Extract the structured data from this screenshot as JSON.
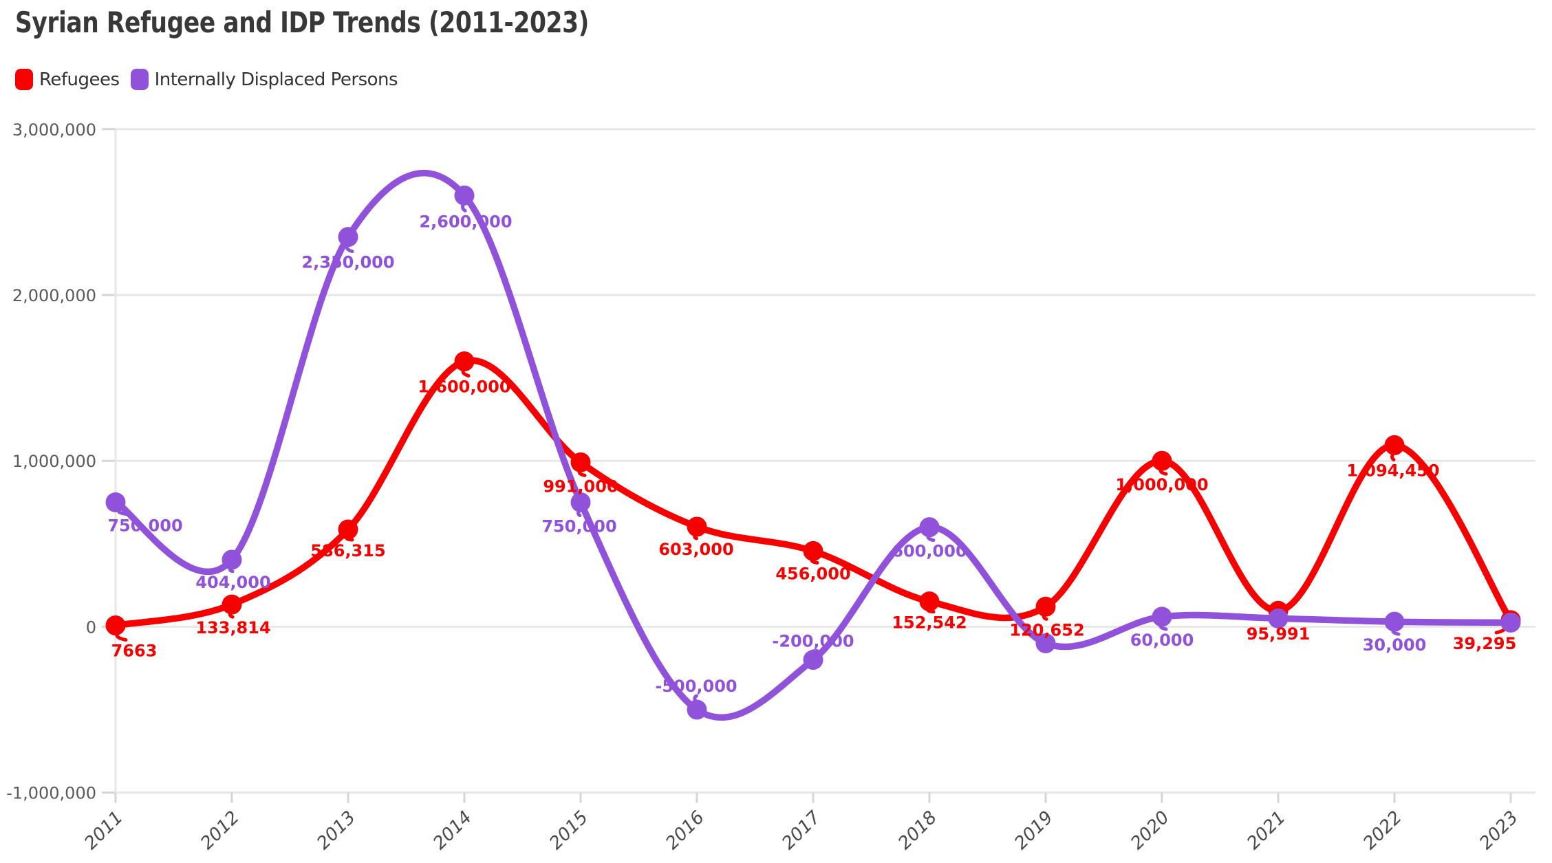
{
  "header": {
    "title": "Syrian Refugee and IDP Trends (2011-2023)"
  },
  "legend": {
    "items": [
      {
        "label": "Refugees",
        "color": "#f60000"
      },
      {
        "label": "Internally Displaced Persons",
        "color": "#9152db"
      }
    ]
  },
  "colors": {
    "refugees": "#f60000",
    "idp": "#9152db",
    "grid": "#e7e7e7",
    "tick": "#d5d5d5",
    "ytick_text": "#595959",
    "xtick_text": "#4a4a4a",
    "title_text": "#383838"
  },
  "chart_data": {
    "type": "line",
    "title": "Syrian Refugee and IDP Trends (2011-2023)",
    "xlabel": "",
    "ylabel": "",
    "grid": "horizontal",
    "legend_position": "top-left",
    "x_labels": [
      "2011",
      "2012",
      "2013",
      "2014",
      "2015",
      "2016",
      "2017",
      "2018",
      "2019",
      "2020",
      "2021",
      "2022",
      "2023"
    ],
    "ylim": [
      -1000000,
      3000000
    ],
    "ytick_values": [
      -1000000,
      0,
      1000000,
      2000000,
      3000000
    ],
    "ytick_labels": [
      "-1,000,000",
      "0",
      "1,000,000",
      "2,000,000",
      "3,000,000"
    ],
    "series": [
      {
        "name": "Refugees",
        "color": "#f60000",
        "values": [
          7663,
          133814,
          586315,
          1600000,
          991000,
          603000,
          456000,
          152542,
          120652,
          1000000,
          95991,
          1094450,
          39295
        ],
        "point_labels": [
          "7663",
          "133,814",
          "586,315",
          "1,600,000",
          "991,000",
          "603,000",
          "456,000",
          "152,542",
          "120,652",
          "1,000,000",
          "95,991",
          "1,094,450",
          "39,295"
        ],
        "label_offsets": [
          [
            27,
            36
          ],
          [
            2,
            33
          ],
          [
            0,
            30
          ],
          [
            0,
            36
          ],
          [
            0,
            34
          ],
          [
            -1,
            32
          ],
          [
            0,
            32
          ],
          [
            0,
            30
          ],
          [
            2,
            33
          ],
          [
            0,
            34
          ],
          [
            0,
            33
          ],
          [
            -2,
            36
          ],
          [
            -38,
            33
          ]
        ]
      },
      {
        "name": "Internally Displaced Persons",
        "color": "#9152db",
        "values": [
          750000,
          404000,
          2350000,
          2600000,
          750000,
          -500000,
          -200000,
          600000,
          -100000,
          60000,
          50000,
          30000,
          25000
        ],
        "point_labels": [
          "750,000",
          "404,000",
          "2,350,000",
          "2,600,000",
          "750,000",
          "-500,000",
          "-200,000",
          "600,000",
          "",
          "60,000",
          "",
          "30,000",
          ""
        ],
        "label_offsets": [
          [
            43,
            33
          ],
          [
            2,
            32
          ],
          [
            0,
            36
          ],
          [
            2,
            37
          ],
          [
            -2,
            34
          ],
          [
            -1,
            -35
          ],
          [
            0,
            -28
          ],
          [
            0,
            34
          ],
          [
            0,
            0
          ],
          [
            0,
            33
          ],
          [
            0,
            0
          ],
          [
            0,
            33
          ],
          [
            0,
            0
          ]
        ]
      }
    ]
  }
}
